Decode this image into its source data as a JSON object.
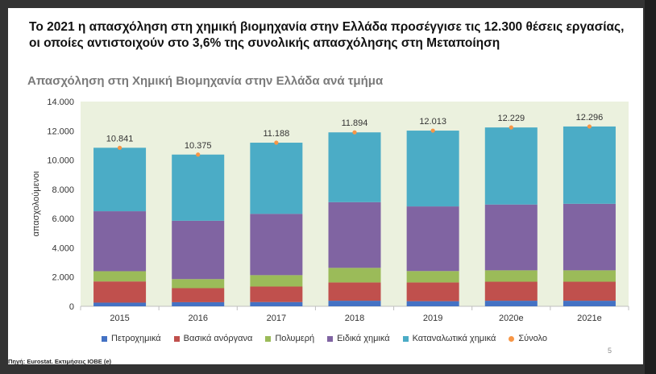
{
  "headline": "Το 2021 η απασχόληση στη χημική βιομηχανία στην Ελλάδα προσέγγισε τις 12.300 θέσεις εργασίας, οι οποίες αντιστοιχούν στο 3,6% της συνολικής απασχόλησης στη Μεταποίηση",
  "source": "Πηγή: Eurostat. Εκτιμήσεις ΙΟΒΕ (e)",
  "page_number": "5",
  "colors": {
    "petro": "#4472c4",
    "basic": "#c0504d",
    "poly": "#9bbb59",
    "special": "#8064a2",
    "consumer": "#4bacc6",
    "total": "#f79646",
    "plot_bg": "#ebf1de"
  },
  "chart_data": {
    "type": "bar",
    "title": "Απασχόληση στη Χημική Βιομηχανία στην Ελλάδα ανά τμήμα",
    "ylabel": "απασχολούμενοι",
    "xlabel": "",
    "ylim": [
      0,
      14000
    ],
    "yticks": [
      "0",
      "2.000",
      "4.000",
      "6.000",
      "8.000",
      "10.000",
      "12.000",
      "14.000"
    ],
    "categories": [
      "2015",
      "2016",
      "2017",
      "2018",
      "2019",
      "2020e",
      "2021e"
    ],
    "series": [
      {
        "name": "Πετροχημικά",
        "key": "petro",
        "values": [
          250,
          280,
          290,
          380,
          350,
          380,
          380
        ]
      },
      {
        "name": "Βασικά ανόργανα",
        "key": "basic",
        "values": [
          1450,
          960,
          1060,
          1250,
          1280,
          1300,
          1300
        ]
      },
      {
        "name": "Πολυμερή",
        "key": "poly",
        "values": [
          700,
          620,
          780,
          1000,
          780,
          780,
          780
        ]
      },
      {
        "name": "Ειδικά χημικά",
        "key": "special",
        "values": [
          4100,
          3990,
          4190,
          4490,
          4420,
          4500,
          4550
        ]
      },
      {
        "name": "Καταναλωτικά χημικά",
        "key": "consumer",
        "values": [
          4341,
          4525,
          4868,
          4774,
          5183,
          5269,
          5286
        ]
      }
    ],
    "total": {
      "name": "Σύνολο",
      "key": "total",
      "values": [
        10841,
        10375,
        11188,
        11894,
        12013,
        12229,
        12296
      ]
    },
    "total_labels": [
      "10.841",
      "10.375",
      "11.188",
      "11.894",
      "12.013",
      "12.229",
      "12.296"
    ]
  }
}
